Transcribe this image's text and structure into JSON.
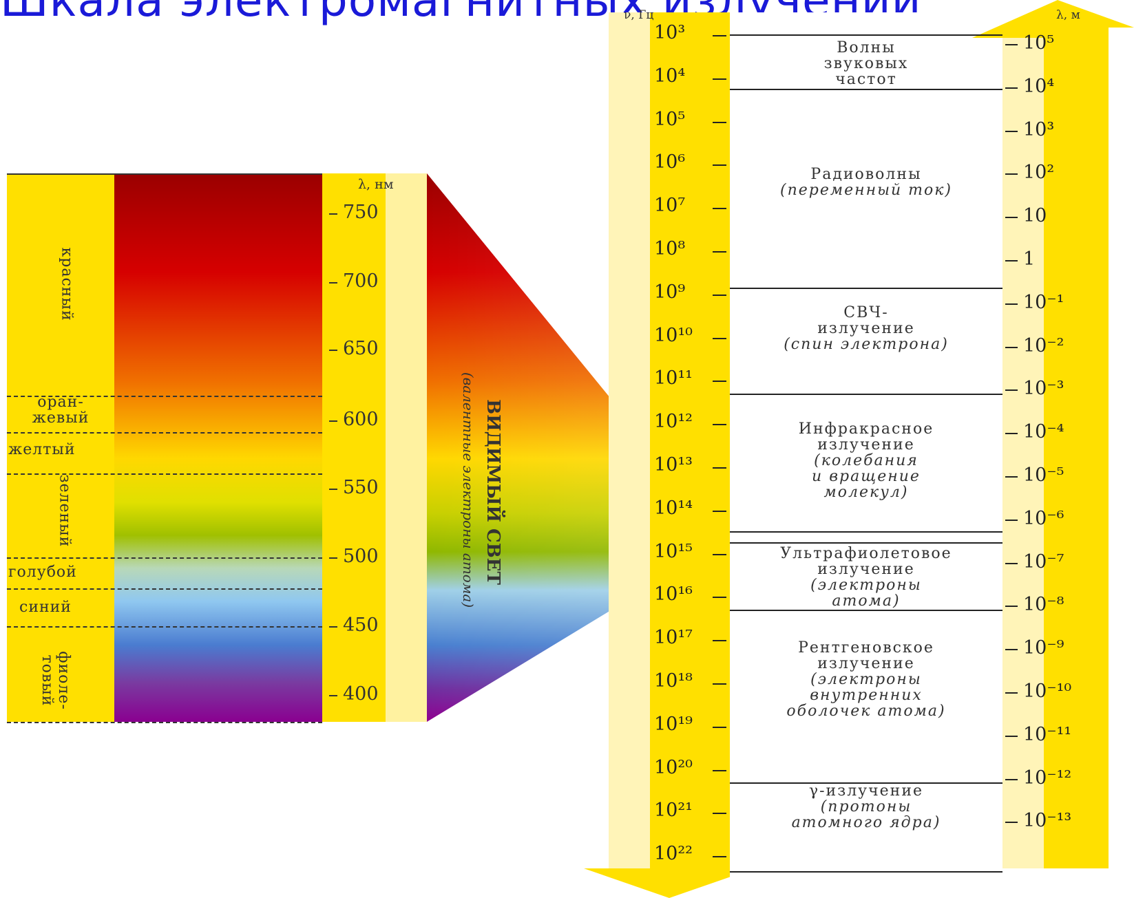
{
  "title": "Шкала электромагнитных излучений",
  "scale": {
    "freq_unit": "ν, Гц",
    "wave_unit": "λ, м",
    "freq_ticks": [
      "10³",
      "10⁴",
      "10⁵",
      "10⁶",
      "10⁷",
      "10⁸",
      "10⁹",
      "10¹⁰",
      "10¹¹",
      "10¹²",
      "10¹³",
      "10¹⁴",
      "10¹⁵",
      "10¹⁶",
      "10¹⁷",
      "10¹⁸",
      "10¹⁹",
      "10²⁰",
      "10²¹",
      "10²²"
    ],
    "wave_ticks": [
      "10⁵",
      "10⁴",
      "10³",
      "10²",
      "10",
      "1",
      "10⁻¹",
      "10⁻²",
      "10⁻³",
      "10⁻⁴",
      "10⁻⁵",
      "10⁻⁶",
      "10⁻⁷",
      "10⁻⁸",
      "10⁻⁹",
      "10⁻¹⁰",
      "10⁻¹¹",
      "10⁻¹²",
      "10⁻¹³"
    ]
  },
  "regions": [
    {
      "lines": [
        "Волны",
        "звуковых",
        "частот"
      ],
      "italic_lines": []
    },
    {
      "lines": [
        "Радиоволны"
      ],
      "italic_lines": [
        "(переменный ток)"
      ]
    },
    {
      "lines": [
        "СВЧ-",
        "излучение"
      ],
      "italic_lines": [
        "(спин электрона)"
      ]
    },
    {
      "lines": [
        "Инфракрасное",
        "излучение"
      ],
      "italic_lines": [
        "(колебания",
        "и вращение",
        "молекул)"
      ]
    },
    {
      "lines": [
        "Ультрафиолетовое",
        "излучение"
      ],
      "italic_lines": [
        "(электроны",
        "атома)"
      ]
    },
    {
      "lines": [
        "Рентгеновское",
        "излучение"
      ],
      "italic_lines": [
        "(электроны",
        "внутренних",
        "оболочек атома)"
      ]
    },
    {
      "lines": [
        "γ-излучение"
      ],
      "italic_lines": [
        "(протоны",
        "атомного ядра)"
      ]
    }
  ],
  "visible": {
    "unit": "λ, нм",
    "nm_ticks": [
      "750",
      "700",
      "650",
      "600",
      "550",
      "500",
      "450",
      "400"
    ],
    "colors": [
      "красный",
      "оран-",
      "жевый",
      "желтый",
      "зеленый",
      "голубой",
      "синий",
      "фиоле-",
      "товый"
    ],
    "label_main": "ВИДИМЫЙ СВЕТ",
    "label_sub": "(валентные электроны атома)"
  },
  "palette": {
    "band_yellow": "#ffe000",
    "pale_yellow": "#fff4b8",
    "title_blue": "#1a1ad8"
  }
}
